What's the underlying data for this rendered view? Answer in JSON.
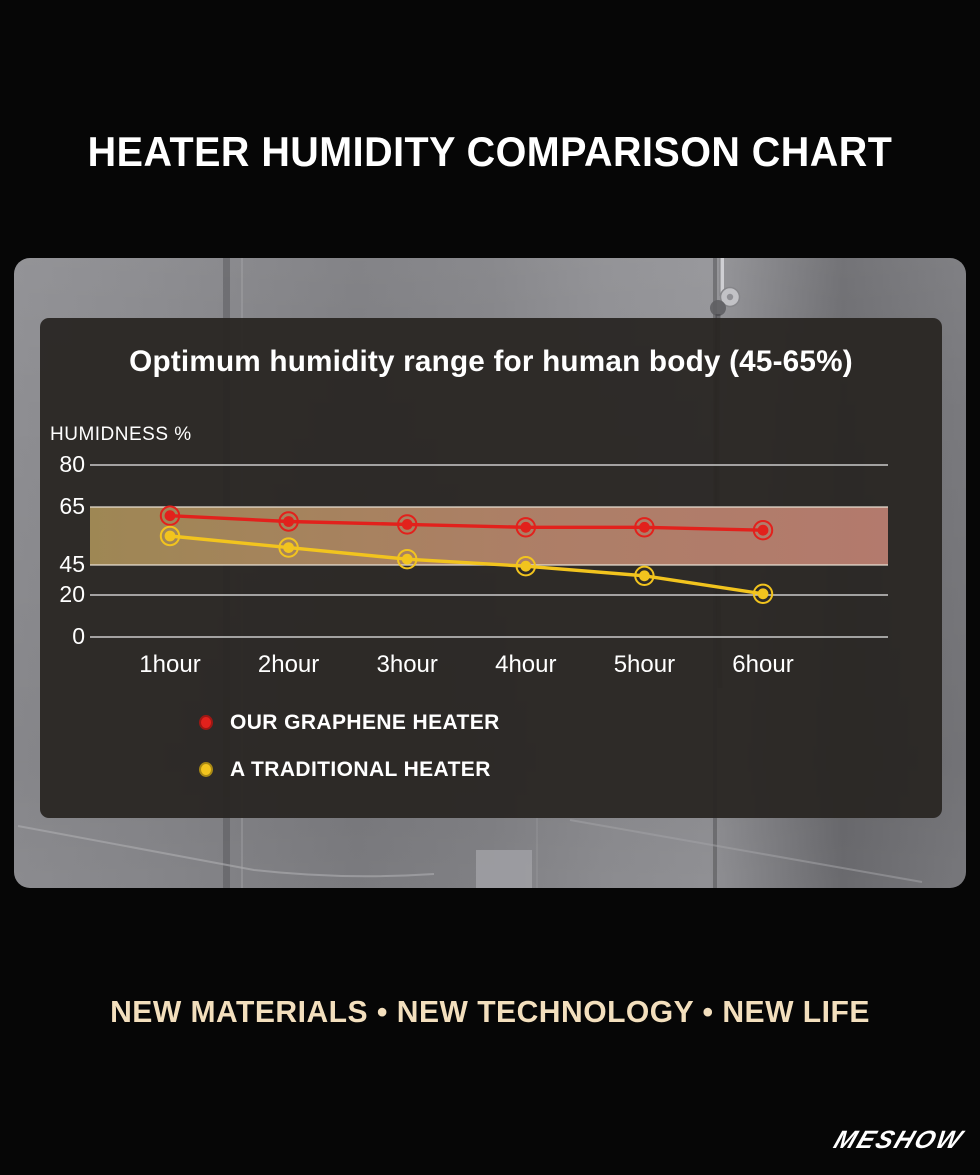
{
  "header": {
    "title": "HEATER HUMIDITY COMPARISON CHART"
  },
  "footer": {
    "tagline": "NEW MATERIALS •  NEW TECHNOLOGY • NEW LIFE",
    "tagline_color": "#f3dfbd",
    "logo": "MESHOW"
  },
  "colors": {
    "page_background": "#060606",
    "panel_background": "rgba(41,38,35,0.95)",
    "grid_line": "#dcdcdc",
    "band_edge_line": "#ece4d8"
  },
  "chart_data": {
    "type": "line",
    "title": "Optimum humidity range for human body (45-65%)",
    "ylabel": "HUMIDNESS %",
    "xlabel": "",
    "categories": [
      "1hour",
      "2hour",
      "3hour",
      "4hour",
      "5hour",
      "6hour"
    ],
    "y_ticks": [
      80,
      65,
      45,
      20,
      0
    ],
    "ylim": [
      0,
      80
    ],
    "grid": "horizontal",
    "legend_position": "bottom-left",
    "optimal_band": {
      "from": 45,
      "to": 65,
      "color_left": "#a88f58",
      "color_mid": "#b8866c",
      "color_right": "#bf8173"
    },
    "series": [
      {
        "name": "OUR GRAPHENE HEATER",
        "color": "#e2211c",
        "values": [
          62,
          60,
          59,
          58,
          58,
          57
        ]
      },
      {
        "name": "A TRADITIONAL HEATER",
        "color": "#f2c41e",
        "values": [
          55,
          51,
          47,
          44,
          36,
          21
        ]
      }
    ]
  }
}
